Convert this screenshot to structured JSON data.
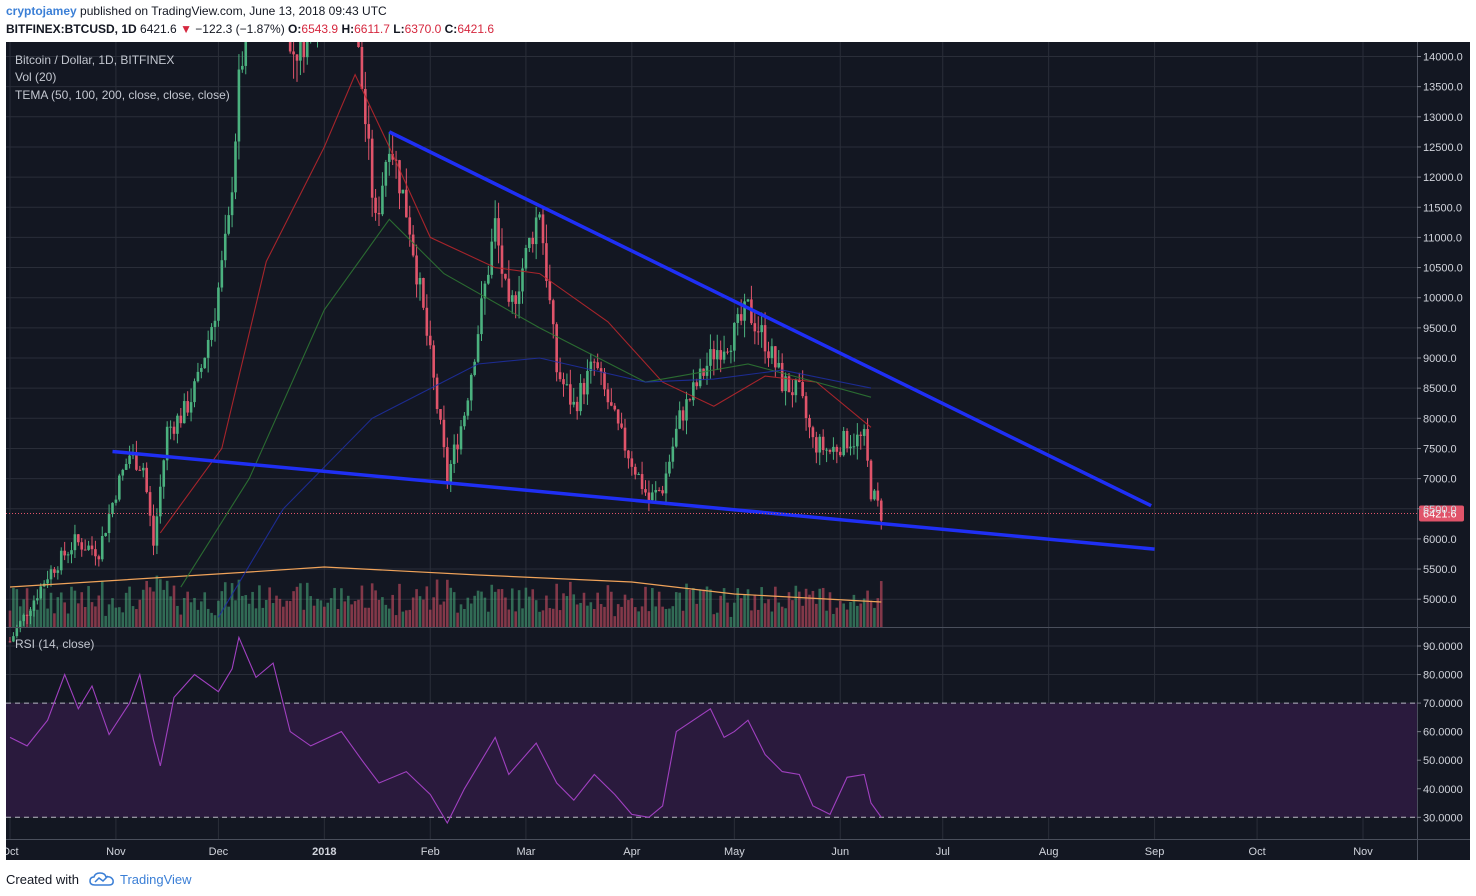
{
  "header": {
    "author": "cryptojamey",
    "published_text": "published on TradingView.com, June 13, 2018 09:43 UTC",
    "symbol": "BITFINEX:BTCUSD, 1D",
    "last": "6421.6",
    "down_arrow": "▼",
    "change": "−122.3 (−1.87%)",
    "o_label": "O:",
    "o": "6543.9",
    "h_label": "H:",
    "h": "6611.7",
    "l_label": "L:",
    "l": "6370.0",
    "c_label": "C:",
    "c": "6421.6"
  },
  "legend": {
    "title": "Bitcoin / Dollar, 1D, BITFINEX",
    "vol": "Vol (20)",
    "tema": "TEMA (50, 100, 200, close, close, close)",
    "rsi": "RSI (14, close)"
  },
  "footer": {
    "created_with": "Created with",
    "brand": "TradingView",
    "icon": "tradingview-cloud-icon"
  },
  "colors": {
    "up": "#4bb17f",
    "down": "#e0546a",
    "trendline": "#1f2ff5",
    "tema50": "#c0272d",
    "tema100": "#2f7a34",
    "tema200": "#1e2fa3",
    "vol_ma": "#f0a35a",
    "rsi": "#a040c0",
    "rsi_band": "#2a1a3d"
  },
  "chart_data": [
    {
      "type": "candlestick",
      "title": "Bitcoin / Dollar, 1D, BITFINEX",
      "y_ticks": [
        "14000.0",
        "13500.0",
        "13000.0",
        "12500.0",
        "12000.0",
        "11500.0",
        "11000.0",
        "10500.0",
        "10000.0",
        "9500.0",
        "9000.0",
        "8500.0",
        "8000.0",
        "7500.0",
        "7000.0",
        "6500.0",
        "6000.0",
        "5500.0",
        "5000.0"
      ],
      "x_ticks": [
        "Oct",
        "Nov",
        "Dec",
        "2018",
        "Feb",
        "Mar",
        "Apr",
        "May",
        "Jun",
        "Jul",
        "Aug",
        "Sep",
        "Oct",
        "Nov"
      ],
      "last_price_label": "6421.6",
      "ylim": [
        4550,
        14150
      ],
      "price_path": [
        [
          "2017-10-01",
          4300
        ],
        [
          "2017-10-12",
          5400
        ],
        [
          "2017-10-20",
          5950
        ],
        [
          "2017-10-27",
          5800
        ],
        [
          "2017-11-01",
          6800
        ],
        [
          "2017-11-05",
          7400
        ],
        [
          "2017-11-09",
          7200
        ],
        [
          "2017-11-12",
          5900
        ],
        [
          "2017-11-16",
          7800
        ],
        [
          "2017-11-21",
          8100
        ],
        [
          "2017-11-25",
          8600
        ],
        [
          "2017-11-30",
          9800
        ],
        [
          "2017-12-04",
          11200
        ],
        [
          "2017-12-07",
          13500
        ],
        [
          "2017-12-10",
          15000
        ],
        [
          "2017-12-17",
          19500
        ],
        [
          "2017-12-22",
          14000
        ],
        [
          "2017-12-28",
          14500
        ],
        [
          "2018-01-06",
          16500
        ],
        [
          "2018-01-12",
          13500
        ],
        [
          "2018-01-16",
          11200
        ],
        [
          "2018-01-20",
          12700
        ],
        [
          "2018-01-26",
          11200
        ],
        [
          "2018-02-01",
          9000
        ],
        [
          "2018-02-06",
          7000
        ],
        [
          "2018-02-11",
          8100
        ],
        [
          "2018-02-20",
          11200
        ],
        [
          "2018-02-24",
          9700
        ],
        [
          "2018-03-05",
          11500
        ],
        [
          "2018-03-10",
          8800
        ],
        [
          "2018-03-15",
          8200
        ],
        [
          "2018-03-21",
          8900
        ],
        [
          "2018-03-28",
          7800
        ],
        [
          "2018-04-06",
          6650
        ],
        [
          "2018-04-10",
          6850
        ],
        [
          "2018-04-15",
          8000
        ],
        [
          "2018-04-25",
          9100
        ],
        [
          "2018-05-01",
          9400
        ],
        [
          "2018-05-05",
          9800
        ],
        [
          "2018-05-10",
          9300
        ],
        [
          "2018-05-15",
          8600
        ],
        [
          "2018-05-20",
          8400
        ],
        [
          "2018-05-24",
          7600
        ],
        [
          "2018-05-29",
          7450
        ],
        [
          "2018-06-03",
          7650
        ],
        [
          "2018-06-08",
          7650
        ],
        [
          "2018-06-10",
          6800
        ],
        [
          "2018-06-13",
          6421.6
        ]
      ],
      "tema": [
        {
          "period": 50,
          "points": [
            [
              "2017-11-14",
              6100
            ],
            [
              "2017-12-02",
              7500
            ],
            [
              "2017-12-15",
              10600
            ],
            [
              "2018-01-01",
              12500
            ],
            [
              "2018-01-10",
              13700
            ],
            [
              "2018-01-20",
              12500
            ],
            [
              "2018-02-01",
              11000
            ],
            [
              "2018-02-20",
              10500
            ],
            [
              "2018-03-05",
              10400
            ],
            [
              "2018-03-25",
              9600
            ],
            [
              "2018-04-10",
              8600
            ],
            [
              "2018-04-25",
              8200
            ],
            [
              "2018-05-10",
              8700
            ],
            [
              "2018-05-25",
              8600
            ],
            [
              "2018-06-10",
              7850
            ]
          ]
        },
        {
          "period": 100,
          "points": [
            [
              "2017-11-20",
              5200
            ],
            [
              "2017-12-10",
              7000
            ],
            [
              "2018-01-01",
              9800
            ],
            [
              "2018-01-20",
              11300
            ],
            [
              "2018-02-05",
              10400
            ],
            [
              "2018-03-05",
              9500
            ],
            [
              "2018-04-05",
              8600
            ],
            [
              "2018-05-05",
              8900
            ],
            [
              "2018-05-25",
              8600
            ],
            [
              "2018-06-10",
              8350
            ]
          ]
        },
        {
          "period": 200,
          "points": [
            [
              "2017-12-01",
              4700
            ],
            [
              "2017-12-20",
              6500
            ],
            [
              "2018-01-15",
              8000
            ],
            [
              "2018-02-15",
              8900
            ],
            [
              "2018-03-05",
              9000
            ],
            [
              "2018-04-05",
              8600
            ],
            [
              "2018-04-25",
              8650
            ],
            [
              "2018-05-15",
              8800
            ],
            [
              "2018-06-10",
              8500
            ]
          ]
        }
      ],
      "trendlines": [
        {
          "from": [
            "2018-01-20",
            12750
          ],
          "to": [
            "2018-08-31",
            6550
          ]
        },
        {
          "from": [
            "2017-10-31",
            7450
          ],
          "to": [
            "2018-09-01",
            5830
          ]
        }
      ]
    },
    {
      "type": "bar",
      "title": "Vol (20)",
      "ma_level": 0.55,
      "ma_path": [
        [
          "2017-10-01",
          0.4
        ],
        [
          "2017-12-10",
          0.55
        ],
        [
          "2018-01-01",
          0.6
        ],
        [
          "2018-02-15",
          0.52
        ],
        [
          "2018-04-01",
          0.45
        ],
        [
          "2018-05-01",
          0.33
        ],
        [
          "2018-06-13",
          0.25
        ]
      ]
    },
    {
      "type": "line",
      "title": "RSI (14, close)",
      "y_ticks": [
        "90.0000",
        "80.0000",
        "70.0000",
        "60.0000",
        "50.0000",
        "40.0000",
        "30.0000"
      ],
      "ylim": [
        25,
        95
      ],
      "bands": [
        30,
        70
      ],
      "values_path": [
        [
          "2017-10-01",
          58
        ],
        [
          "2017-10-06",
          55
        ],
        [
          "2017-10-12",
          64
        ],
        [
          "2017-10-17",
          80
        ],
        [
          "2017-10-21",
          68
        ],
        [
          "2017-10-25",
          76
        ],
        [
          "2017-10-30",
          59
        ],
        [
          "2017-11-05",
          70
        ],
        [
          "2017-11-08",
          80
        ],
        [
          "2017-11-12",
          57
        ],
        [
          "2017-11-14",
          48
        ],
        [
          "2017-11-18",
          72
        ],
        [
          "2017-11-24",
          80
        ],
        [
          "2017-12-01",
          74
        ],
        [
          "2017-12-05",
          82
        ],
        [
          "2017-12-07",
          93
        ],
        [
          "2017-12-12",
          79
        ],
        [
          "2017-12-17",
          84
        ],
        [
          "2017-12-22",
          60
        ],
        [
          "2017-12-28",
          55
        ],
        [
          "2018-01-06",
          60
        ],
        [
          "2018-01-12",
          50
        ],
        [
          "2018-01-17",
          42
        ],
        [
          "2018-01-25",
          46
        ],
        [
          "2018-02-01",
          38
        ],
        [
          "2018-02-06",
          28
        ],
        [
          "2018-02-11",
          40
        ],
        [
          "2018-02-20",
          58
        ],
        [
          "2018-02-24",
          45
        ],
        [
          "2018-03-04",
          56
        ],
        [
          "2018-03-10",
          42
        ],
        [
          "2018-03-15",
          36
        ],
        [
          "2018-03-21",
          45
        ],
        [
          "2018-03-27",
          38
        ],
        [
          "2018-04-01",
          31
        ],
        [
          "2018-04-06",
          30
        ],
        [
          "2018-04-10",
          34
        ],
        [
          "2018-04-14",
          60
        ],
        [
          "2018-04-24",
          68
        ],
        [
          "2018-04-28",
          58
        ],
        [
          "2018-05-01",
          60
        ],
        [
          "2018-05-05",
          64
        ],
        [
          "2018-05-10",
          52
        ],
        [
          "2018-05-15",
          46
        ],
        [
          "2018-05-20",
          45
        ],
        [
          "2018-05-24",
          34
        ],
        [
          "2018-05-29",
          31
        ],
        [
          "2018-06-03",
          44
        ],
        [
          "2018-06-08",
          45
        ],
        [
          "2018-06-10",
          35
        ],
        [
          "2018-06-13",
          30
        ]
      ]
    }
  ]
}
